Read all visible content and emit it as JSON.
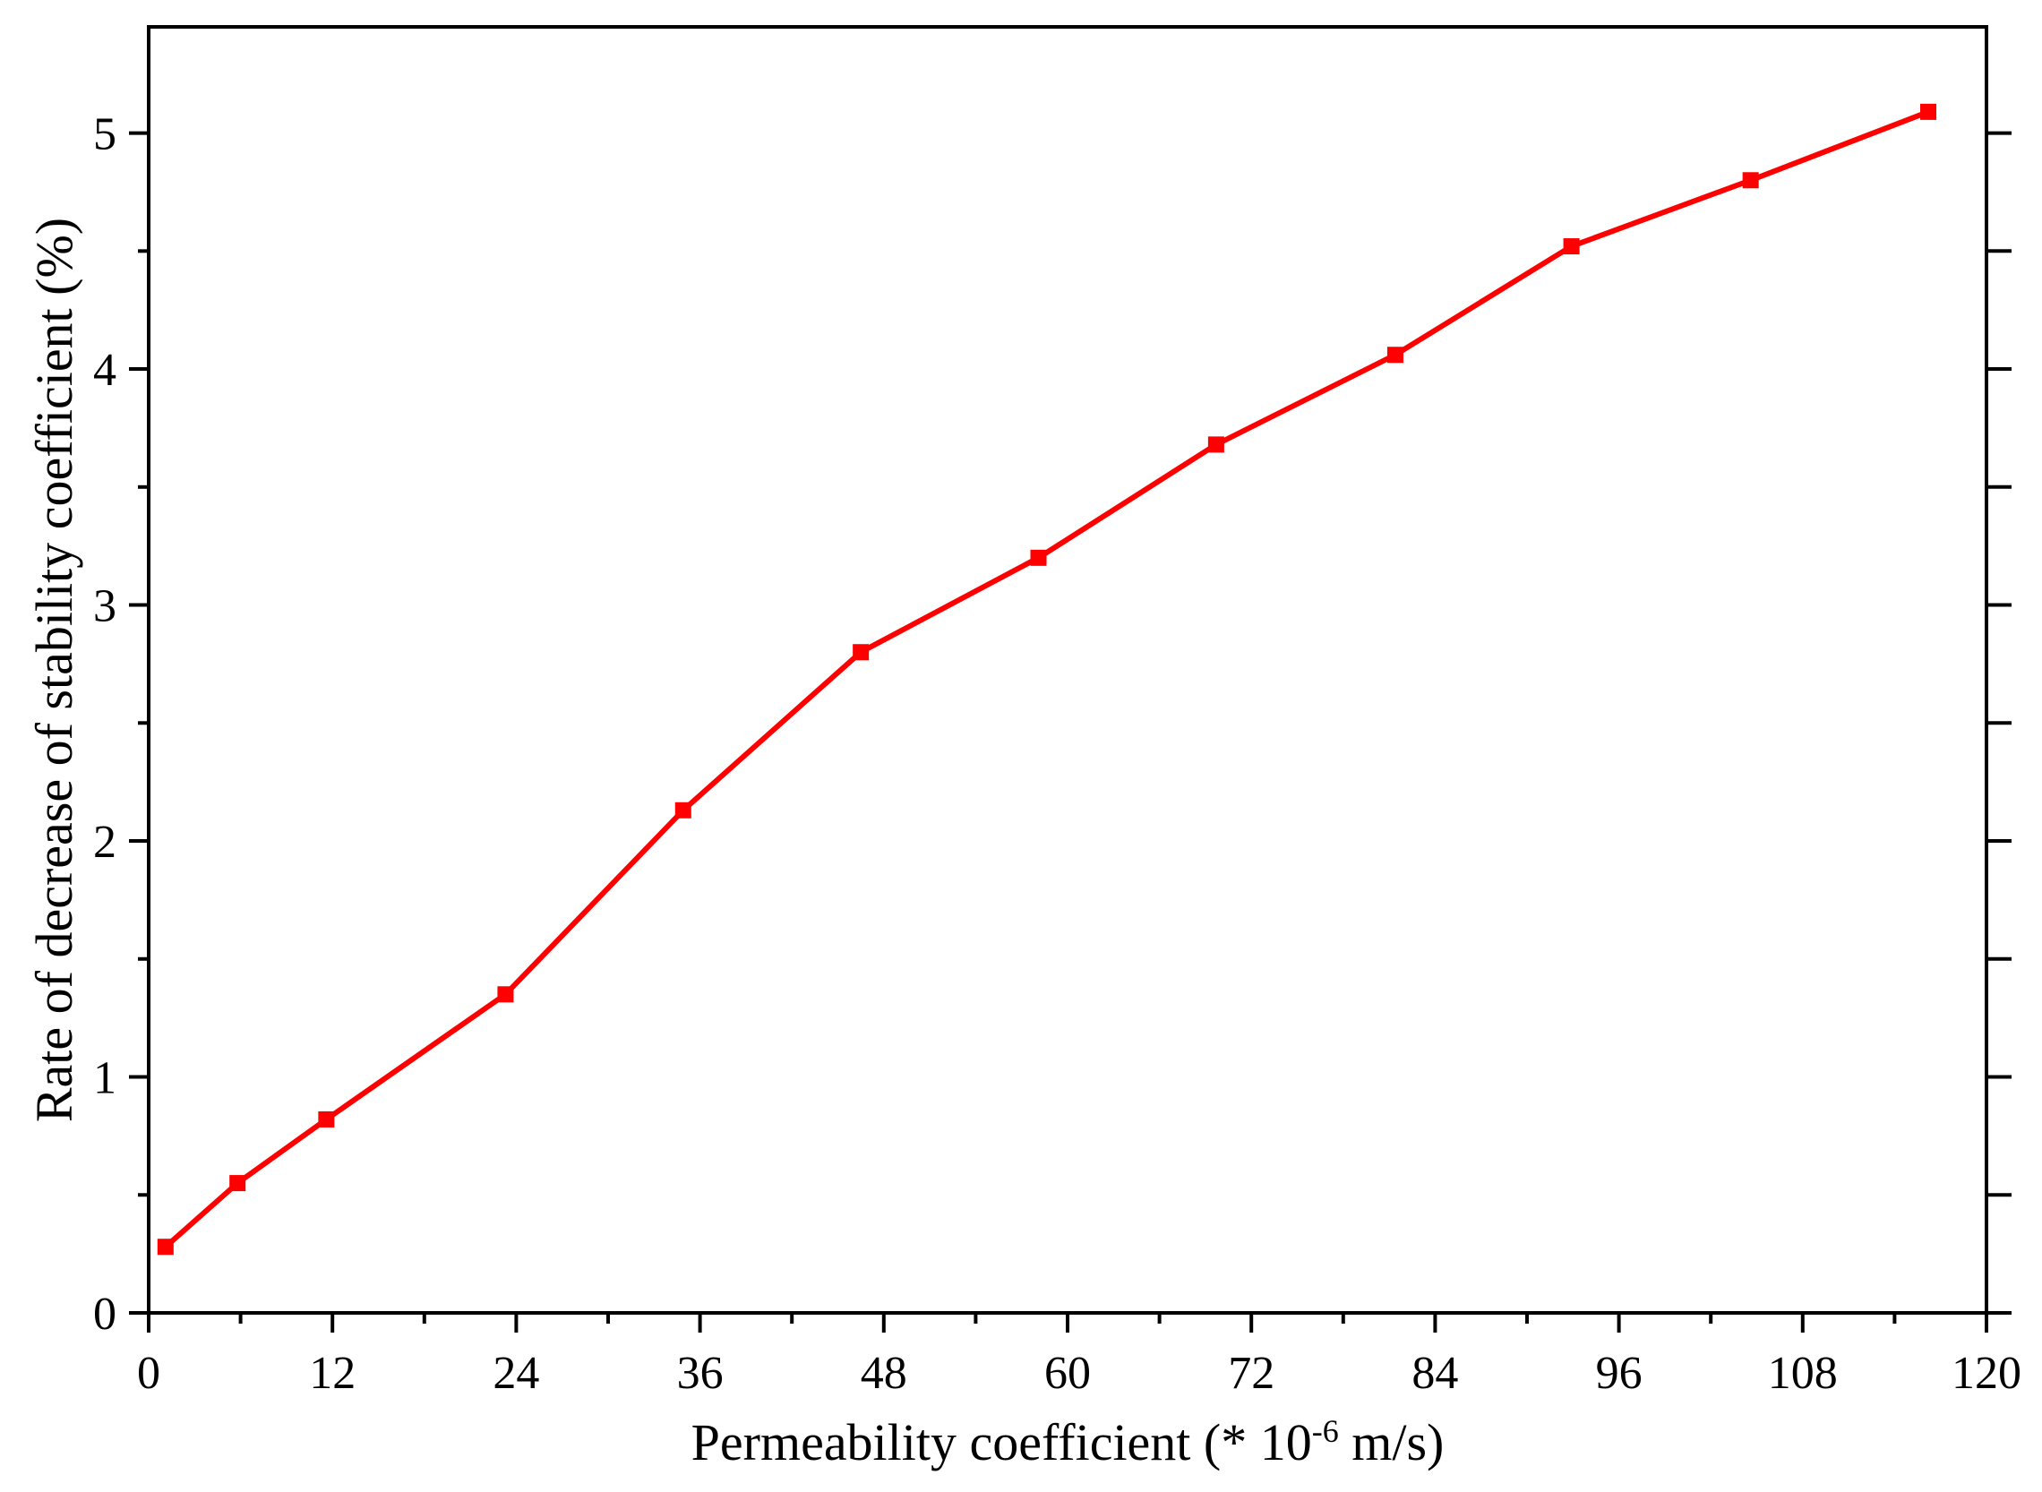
{
  "chart_data": {
    "type": "line",
    "xlabel": "Permeability coefficient (* 10",
    "xlabel_exponent": "-6",
    "xlabel_unit": " m/s)",
    "ylabel": "Rate of decrease of  stability coefficient (%)",
    "xlim": [
      0,
      120
    ],
    "ylim": [
      0,
      5.45
    ],
    "x_ticks": [
      0,
      12,
      24,
      36,
      48,
      60,
      72,
      84,
      96,
      108,
      120
    ],
    "x_minor_ticks": [
      6,
      18,
      30,
      42,
      54,
      66,
      78,
      90,
      102,
      114
    ],
    "y_ticks": [
      0,
      1,
      2,
      3,
      4,
      5
    ],
    "y_minor_ticks": [
      0.5,
      1.5,
      2.5,
      3.5,
      4.5
    ],
    "grid": false,
    "legend": "none",
    "series": [
      {
        "color": "#ff0000",
        "marker": "square",
        "x": [
          1.1,
          5.8,
          11.6,
          23.3,
          34.9,
          46.5,
          58.1,
          69.7,
          81.4,
          92.9,
          104.6,
          116.2
        ],
        "values": [
          0.28,
          0.55,
          0.82,
          1.35,
          2.13,
          2.8,
          3.2,
          3.68,
          4.06,
          4.52,
          4.8,
          5.09
        ]
      }
    ]
  }
}
